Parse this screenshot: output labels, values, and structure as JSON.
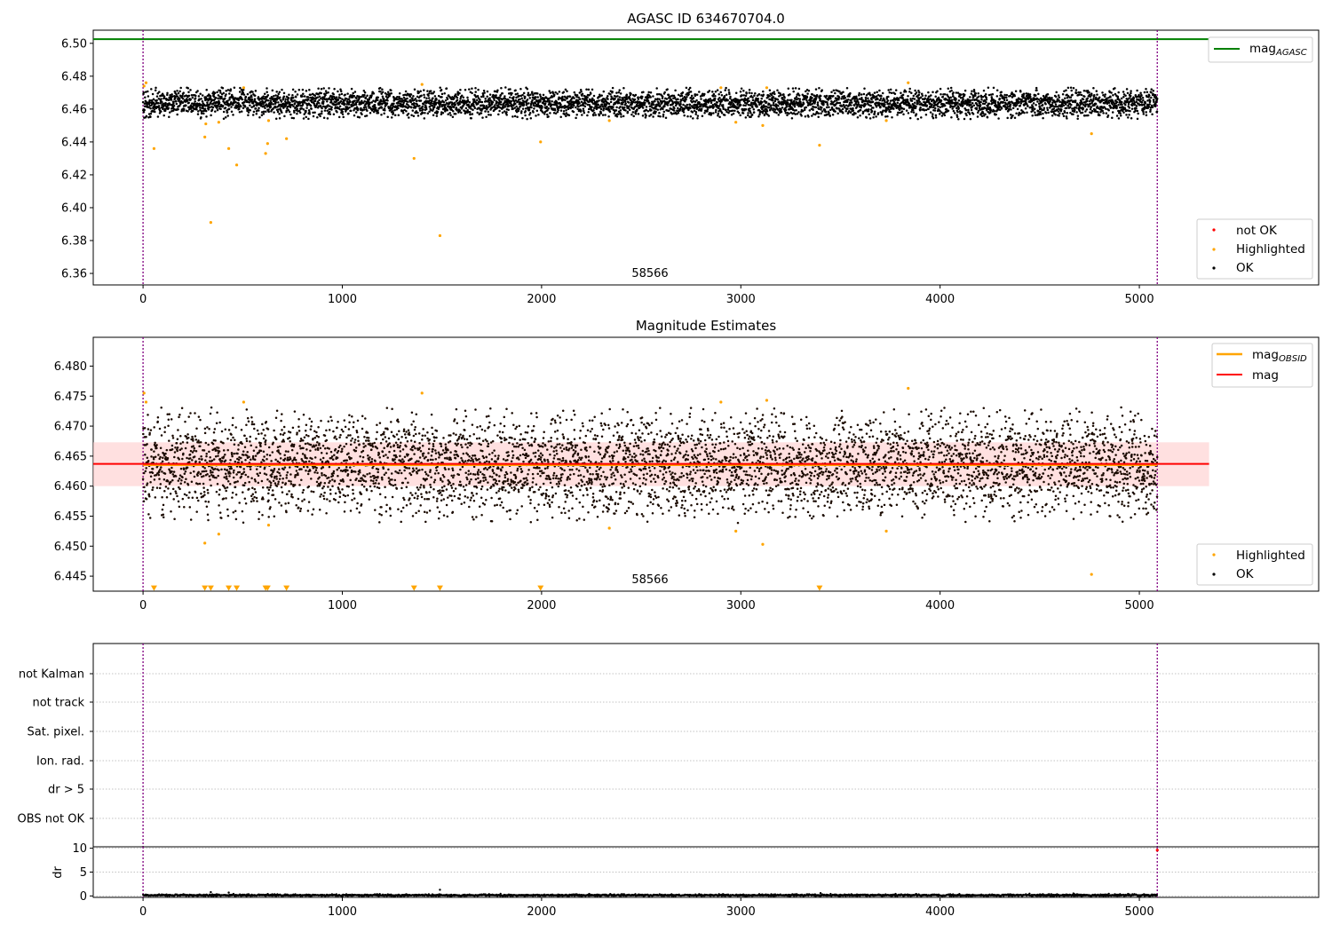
{
  "chart_data": [
    {
      "type": "scatter",
      "title": "AGASC ID 634670704.0",
      "annotation": "58566",
      "xlim": [
        -250,
        5900
      ],
      "ylim": [
        6.353,
        6.508
      ],
      "xticks": [
        0,
        1000,
        2000,
        3000,
        4000,
        5000
      ],
      "yticks": [
        6.36,
        6.38,
        6.4,
        6.42,
        6.44,
        6.46,
        6.48,
        6.5
      ],
      "vlines": [
        0,
        5090
      ],
      "grid": false,
      "lines": [
        {
          "name": "mag",
          "subscript": "AGASC",
          "y": 6.5025,
          "x_range": [
            -250,
            5350
          ],
          "color": "#008000"
        }
      ],
      "ok_band": {
        "center": 6.4635,
        "half_width": 0.0045,
        "x_range": [
          0,
          5090
        ]
      },
      "series": [
        {
          "name": "not OK",
          "color": "#ff0000",
          "points": []
        },
        {
          "name": "Highlighted",
          "color": "#ffa500",
          "points": [
            [
              5,
              6.474
            ],
            [
              15,
              6.476
            ],
            [
              55,
              6.436
            ],
            [
              310,
              6.443
            ],
            [
              315,
              6.451
            ],
            [
              340,
              6.391
            ],
            [
              380,
              6.452
            ],
            [
              430,
              6.436
            ],
            [
              470,
              6.426
            ],
            [
              505,
              6.473
            ],
            [
              615,
              6.433
            ],
            [
              625,
              6.439
            ],
            [
              630,
              6.453
            ],
            [
              720,
              6.442
            ],
            [
              1360,
              6.43
            ],
            [
              1400,
              6.475
            ],
            [
              1490,
              6.383
            ],
            [
              1995,
              6.44
            ],
            [
              2340,
              6.453
            ],
            [
              2900,
              6.473
            ],
            [
              2975,
              6.452
            ],
            [
              3110,
              6.45
            ],
            [
              3130,
              6.473
            ],
            [
              3395,
              6.438
            ],
            [
              3730,
              6.453
            ],
            [
              3840,
              6.476
            ],
            [
              4760,
              6.445
            ]
          ]
        },
        {
          "name": "OK",
          "color": "#000000",
          "count": 5090,
          "x_range": [
            0,
            5090
          ],
          "center": 6.4635,
          "spread": 0.0042
        }
      ],
      "legend": {
        "entries": [
          "not OK",
          "Highlighted",
          "OK"
        ],
        "placement": "lower-right"
      },
      "line_legend": {
        "placement": "upper-right"
      }
    },
    {
      "type": "scatter",
      "title": "Magnitude Estimates",
      "annotation": "58566",
      "xlim": [
        -250,
        5900
      ],
      "ylim": [
        6.4425,
        6.4848
      ],
      "xticks": [
        0,
        1000,
        2000,
        3000,
        4000,
        5000
      ],
      "yticks": [
        6.445,
        6.45,
        6.455,
        6.46,
        6.465,
        6.47,
        6.475,
        6.48
      ],
      "ytick_format": 3,
      "vlines": [
        0,
        5090
      ],
      "grid": false,
      "lines": [
        {
          "name": "mag",
          "subscript": "OBSID",
          "color": "#ffa500",
          "y": 6.4635,
          "x_range": [
            0,
            5090
          ]
        },
        {
          "name": "mag",
          "color": "#ff0000",
          "y": 6.4637,
          "x_range": [
            -250,
            5350
          ]
        }
      ],
      "band": {
        "y_range": [
          6.46,
          6.4673
        ],
        "x_range": [
          -250,
          5350
        ],
        "color": "#ffcccc"
      },
      "ok_band": {
        "center": 6.4635,
        "half_width": 0.0045,
        "x_range": [
          0,
          5090
        ]
      },
      "series": [
        {
          "name": "Highlighted",
          "color": "#ffa500",
          "points": [
            [
              5,
              6.4755
            ],
            [
              15,
              6.474
            ],
            [
              310,
              6.4505
            ],
            [
              380,
              6.452
            ],
            [
              505,
              6.474
            ],
            [
              630,
              6.4535
            ],
            [
              1400,
              6.4755
            ],
            [
              2340,
              6.453
            ],
            [
              2900,
              6.474
            ],
            [
              2975,
              6.4525
            ],
            [
              3110,
              6.4503
            ],
            [
              3130,
              6.4743
            ],
            [
              3730,
              6.4525
            ],
            [
              3840,
              6.4763
            ],
            [
              4760,
              6.4453
            ]
          ]
        },
        {
          "name": "Highlighted (below range)",
          "color": "#ffa500",
          "marker": "triangle-down",
          "x": [
            55,
            310,
            340,
            430,
            470,
            615,
            625,
            720,
            1360,
            1490,
            1995,
            3395
          ],
          "y": 6.443
        },
        {
          "name": "OK",
          "color": "#000000",
          "count": 5090,
          "x_range": [
            0,
            5090
          ],
          "center": 6.4635,
          "spread": 0.0042
        }
      ],
      "legend": {
        "entries": [
          "Highlighted",
          "OK"
        ],
        "placement": "lower-right"
      },
      "line_legend": {
        "placement": "upper-right"
      }
    },
    {
      "type": "scatter",
      "title": "",
      "xlim": [
        -250,
        5900
      ],
      "vlines": [
        0,
        5090
      ],
      "categories": [
        "not Kalman",
        "not track",
        "Sat. pixel.",
        "Ion. rad.",
        "dr > 5",
        "OBS not OK"
      ],
      "grid": true,
      "series": []
    },
    {
      "type": "scatter",
      "title": "",
      "ylabel": "dr",
      "xlim": [
        -250,
        5900
      ],
      "ylim": [
        -0.3,
        10.3
      ],
      "xticks": [
        0,
        1000,
        2000,
        3000,
        4000,
        5000
      ],
      "yticks": [
        0,
        5,
        10
      ],
      "vlines": [
        0,
        5090
      ],
      "grid": true,
      "series": [
        {
          "name": "dr",
          "color": "#000000",
          "count": 5090,
          "x_range": [
            0,
            5090
          ],
          "center": 0.15,
          "spread": 0.1,
          "outliers": [
            [
              340,
              0.8
            ],
            [
              430,
              0.7
            ],
            [
              1490,
              1.3
            ],
            [
              3400,
              0.6
            ]
          ]
        },
        {
          "name": "dr not OK",
          "color": "#ff0000",
          "points": [
            [
              5090,
              9.6
            ]
          ]
        }
      ]
    }
  ]
}
